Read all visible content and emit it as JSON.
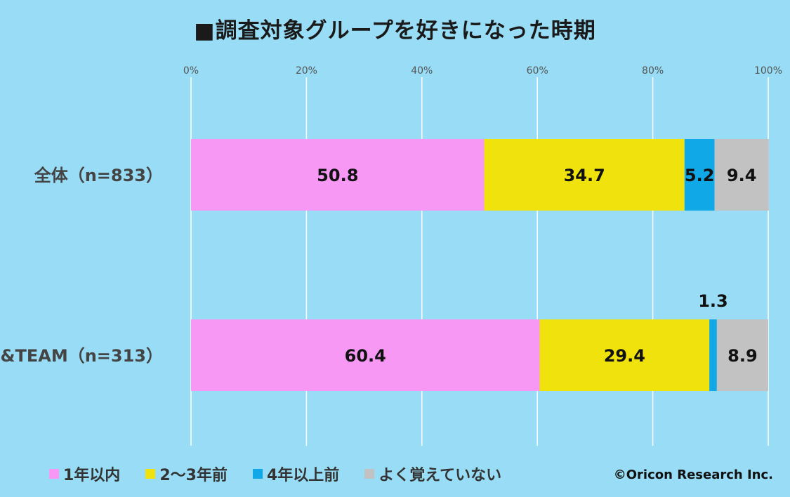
{
  "title": "■調査対象グループを好きになった時期",
  "copyright": "©Oricon Research Inc.",
  "chart_data": {
    "type": "bar",
    "orientation": "horizontal",
    "stacked": true,
    "xlim": [
      0,
      100
    ],
    "x_ticks": [
      "0%",
      "20%",
      "40%",
      "60%",
      "80%",
      "100%"
    ],
    "categories": [
      "全体（n=833）",
      "&TEAM（n=313）"
    ],
    "series": [
      {
        "name": "1年以内",
        "color": "#f798f5",
        "values": [
          50.8,
          60.4
        ],
        "labels": [
          "50.8",
          "60.4"
        ]
      },
      {
        "name": "2〜3年前",
        "color": "#f0e30d",
        "values": [
          34.7,
          29.4
        ],
        "labels": [
          "34.7",
          "29.4"
        ]
      },
      {
        "name": "4年以上前",
        "color": "#10a8e6",
        "values": [
          5.2,
          1.3
        ],
        "labels": [
          "5.2",
          "1.3"
        ]
      },
      {
        "name": "よく覚えていない",
        "color": "#c2c2c2",
        "values": [
          9.4,
          8.9
        ],
        "labels": [
          "9.4",
          "8.9"
        ]
      }
    ],
    "grid": true,
    "legend_position": "bottom"
  }
}
